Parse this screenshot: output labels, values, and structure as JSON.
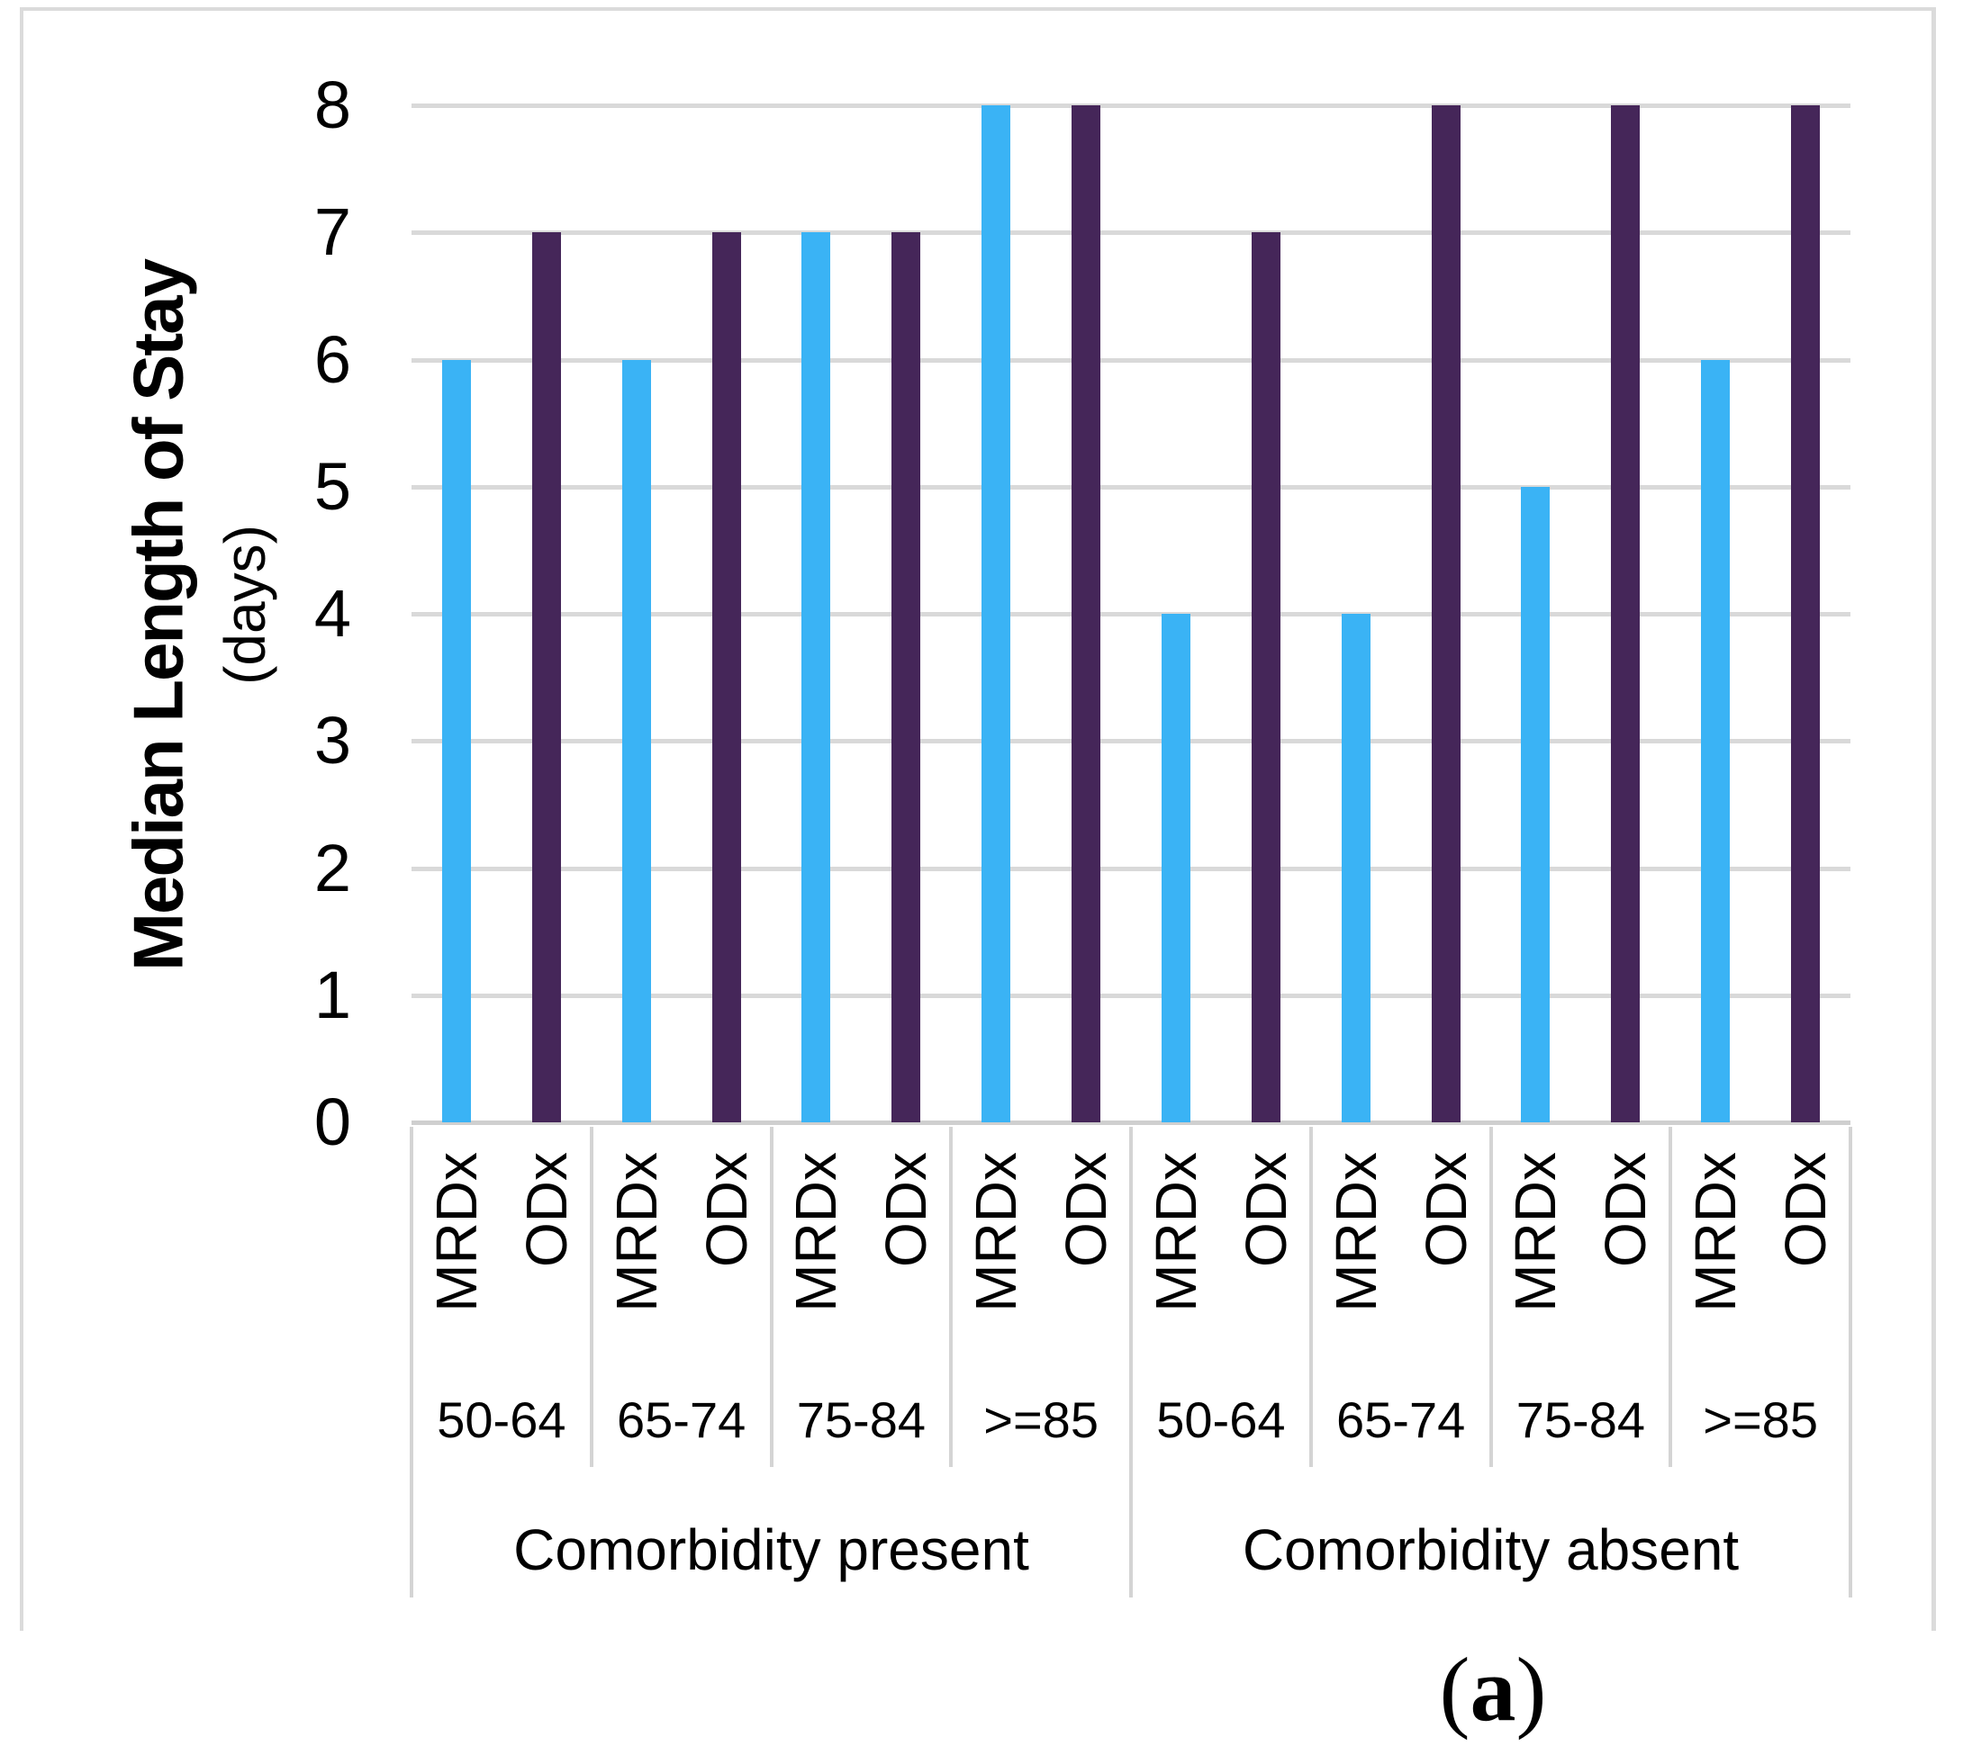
{
  "chart_data": {
    "type": "bar",
    "title": "",
    "y_axis": {
      "title": "Median Length of Stay",
      "units": "(days)",
      "min": 0,
      "max": 8,
      "tick_step": 1
    },
    "y_ticks": [
      0,
      1,
      2,
      3,
      4,
      5,
      6,
      7,
      8
    ],
    "grid": true,
    "legend": "none",
    "series_labels": [
      "MRDx",
      "ODx"
    ],
    "series_colors": [
      "#3ab3f5",
      "#452659"
    ],
    "groups": [
      {
        "label": "Comorbidity present",
        "categories": [
          "50-64",
          "65-74",
          "75-84",
          ">=85"
        ],
        "series": [
          {
            "name": "MRDx",
            "values": [
              6,
              6,
              7,
              8
            ]
          },
          {
            "name": "ODx",
            "values": [
              7,
              7,
              7,
              8
            ]
          }
        ]
      },
      {
        "label": "Comorbidity absent",
        "categories": [
          "50-64",
          "65-74",
          "75-84",
          ">=85"
        ],
        "series": [
          {
            "name": "MRDx",
            "values": [
              4,
              4,
              5,
              6
            ]
          },
          {
            "name": "ODx",
            "values": [
              7,
              8,
              8,
              8
            ]
          }
        ]
      }
    ]
  },
  "caption": {
    "open": "(",
    "letter": "a",
    "close": ")"
  }
}
